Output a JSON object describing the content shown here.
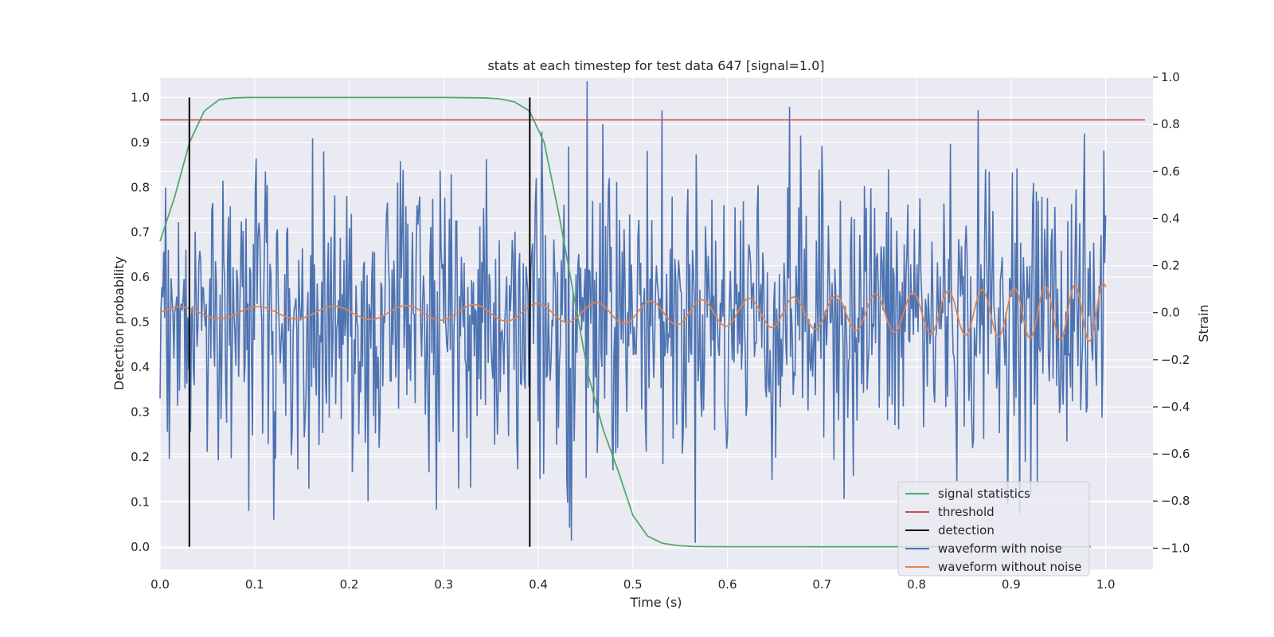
{
  "chart_data": {
    "type": "line",
    "title": "stats at each timestep for test data 647 [signal=1.0]",
    "xlabel": "Time (s)",
    "ylabel_left": "Detection probability",
    "ylabel_right": "Strain",
    "xlim": [
      0.0,
      1.05
    ],
    "ylim_left": [
      -0.05,
      1.045
    ],
    "ylim_right": [
      -1.09,
      1.0
    ],
    "grid": true,
    "legend_position": "lower-right",
    "x_ticks": [
      "0.0",
      "0.1",
      "0.2",
      "0.3",
      "0.4",
      "0.5",
      "0.6",
      "0.7",
      "0.8",
      "0.9",
      "1.0"
    ],
    "y_ticks_left": [
      "0.0",
      "0.1",
      "0.2",
      "0.3",
      "0.4",
      "0.5",
      "0.6",
      "0.7",
      "0.8",
      "0.9",
      "1.0"
    ],
    "y_ticks_right": [
      "−1.0",
      "−0.8",
      "−0.6",
      "−0.4",
      "−0.2",
      "0.0",
      "0.2",
      "0.4",
      "0.6",
      "0.8",
      "1.0"
    ],
    "threshold": 0.95,
    "detections": [
      0.031,
      0.391
    ],
    "series": [
      {
        "name": "signal statistics",
        "axis": "left",
        "color": "#55a868",
        "x": [
          0.0,
          0.0156,
          0.0312,
          0.0468,
          0.0625,
          0.0781,
          0.0937,
          0.1093,
          0.125,
          0.15,
          0.2,
          0.25,
          0.3,
          0.3437,
          0.3593,
          0.375,
          0.3906,
          0.4062,
          0.4218,
          0.4375,
          0.4531,
          0.4687,
          0.4843,
          0.5,
          0.5156,
          0.5312,
          0.5468,
          0.5625,
          0.5781,
          0.6,
          0.7,
          0.8,
          0.9,
          0.9843
        ],
        "y": [
          0.68,
          0.78,
          0.9,
          0.97,
          0.995,
          0.999,
          1.0,
          1.0,
          1.0,
          1.0,
          1.0,
          1.0,
          1.0,
          0.999,
          0.997,
          0.99,
          0.97,
          0.9,
          0.74,
          0.56,
          0.38,
          0.26,
          0.17,
          0.07,
          0.024,
          0.008,
          0.003,
          0.001,
          0.0005,
          0.0003,
          0.0002,
          0.0002,
          0.0002,
          0.0002
        ]
      },
      {
        "name": "threshold",
        "axis": "left",
        "color": "#c44e52"
      },
      {
        "name": "detection",
        "axis": "left",
        "color": "#000000"
      },
      {
        "name": "waveform with noise",
        "axis": "right",
        "color": "#4c72b0",
        "samples": 1024,
        "amplitude_std": 0.3,
        "x_range": [
          0.0,
          1.0
        ]
      },
      {
        "name": "waveform without noise",
        "axis": "right",
        "color": "#dd8452",
        "description_of_shape": "chirp",
        "x_range": [
          0.0,
          1.0
        ]
      }
    ]
  }
}
